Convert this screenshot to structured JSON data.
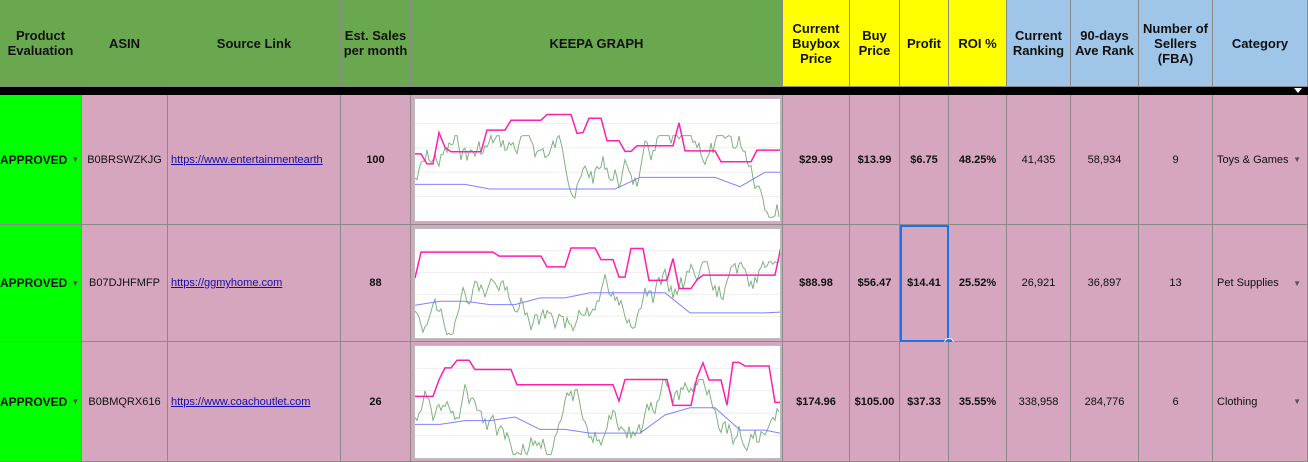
{
  "colors": {
    "header_green": "#6aa84f",
    "header_yellow": "#ffff00",
    "header_blue": "#9fc5e8",
    "row_pink": "#d5a6bd",
    "approved_green": "#00ff00",
    "keepa_price_pink": "#ff1fae",
    "keepa_rank_green": "#7fb27f",
    "keepa_buybox_blue": "#8080ff"
  },
  "headers": {
    "product_evaluation": "Product\nEvaluation",
    "asin": "ASIN",
    "source_link": "Source Link",
    "est_sales": "Est. Sales\nper month",
    "keepa_graph": "KEEPA GRAPH",
    "current_buybox": "Current\nBuybox\nPrice",
    "buy_price": "Buy\nPrice",
    "profit": "Profit",
    "roi": "ROI %",
    "current_ranking": "Current\nRanking",
    "ave_rank": "90-days\nAve Rank",
    "num_sellers": "Number of\nSellers\n(FBA)",
    "category": "Category"
  },
  "rows": [
    {
      "evaluation": "APPROVED",
      "asin": "B0BRSWZKJG",
      "source_link": "https://www.entertainmentearth",
      "est_sales": "100",
      "buybox_price": "$29.99",
      "buy_price": "$13.99",
      "profit": "$6.75",
      "roi": "48.25%",
      "current_ranking": "41,435",
      "ave_rank": "58,934",
      "sellers": "9",
      "category": "Toys & Games",
      "keepa_seed": 7
    },
    {
      "evaluation": "APPROVED",
      "asin": "B07DJHFMFP",
      "source_link": "https://ggmyhome.com",
      "est_sales": "88",
      "buybox_price": "$88.98",
      "buy_price": "$56.47",
      "profit": "$14.41",
      "roi": "25.52%",
      "current_ranking": "26,921",
      "ave_rank": "36,897",
      "sellers": "13",
      "category": "Pet Supplies",
      "keepa_seed": 19
    },
    {
      "evaluation": "APPROVED",
      "asin": "B0BMQRX616",
      "source_link": "https://www.coachoutlet.com",
      "est_sales": "26",
      "buybox_price": "$174.96",
      "buy_price": "$105.00",
      "profit": "$37.33",
      "roi": "35.55%",
      "current_ranking": "338,958",
      "ave_rank": "284,776",
      "sellers": "6",
      "category": "Clothing",
      "keepa_seed": 31
    }
  ]
}
